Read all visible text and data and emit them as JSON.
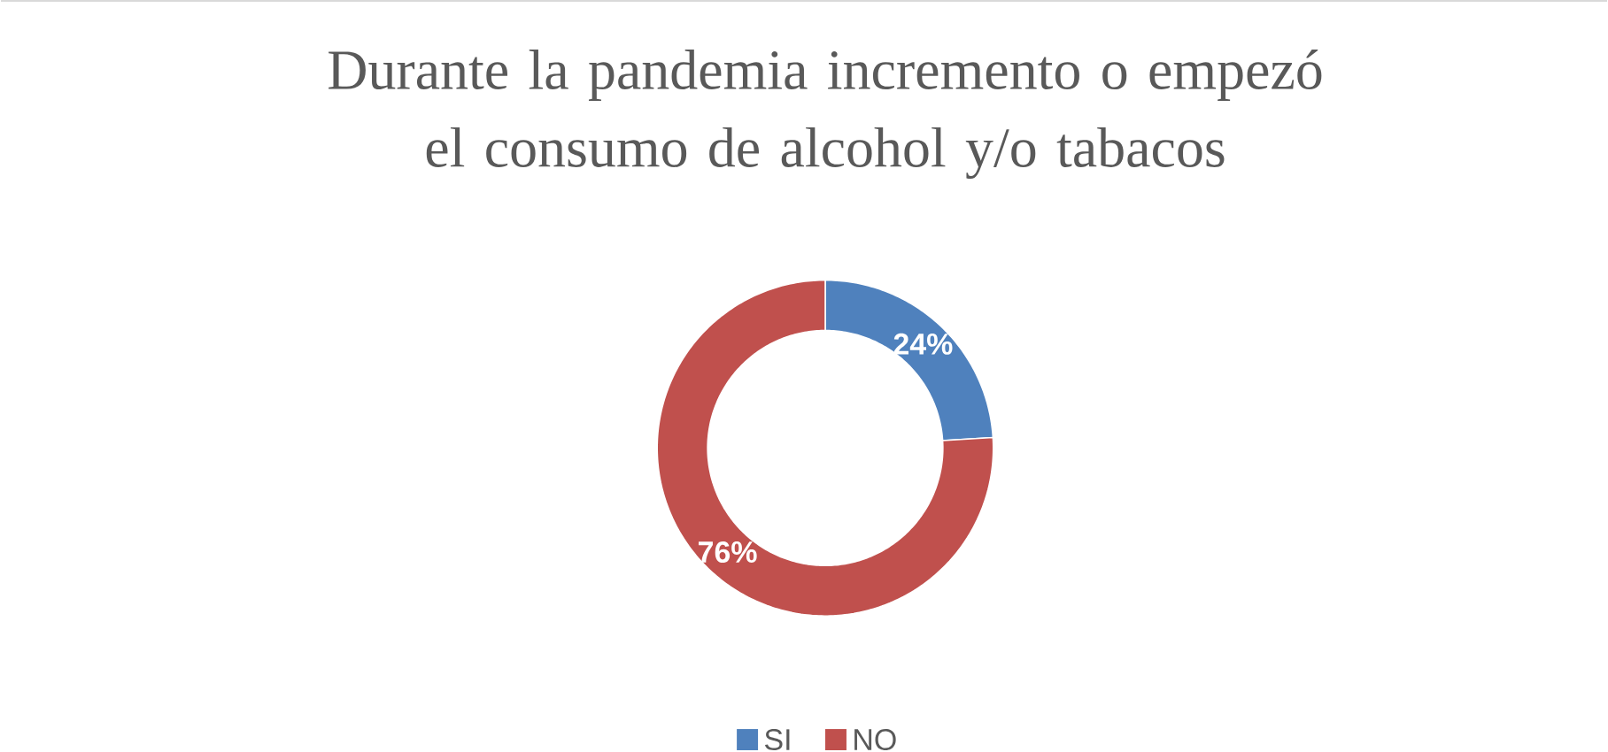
{
  "chart_data": {
    "type": "donut",
    "title": "Durante la pandemia incremento o empezó el consumo de alcohol y/o tabacos",
    "categories": [
      "SI",
      "NO"
    ],
    "values": [
      24,
      76
    ],
    "colors": [
      "#4f81bd",
      "#c0504d"
    ],
    "value_labels": [
      "24%",
      "76%"
    ],
    "legend": "bottom"
  }
}
